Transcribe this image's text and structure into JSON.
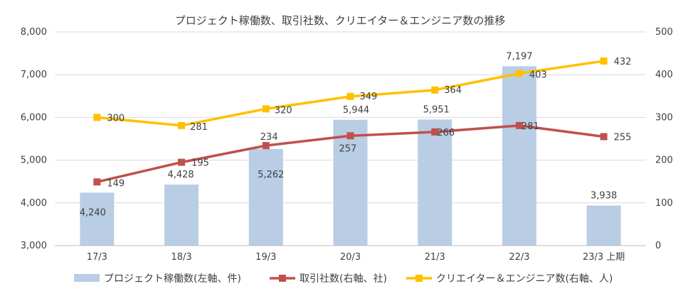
{
  "chart_data": {
    "type": "bar+line",
    "title": "プロジェクト稼働数、取引社数、クリエイター＆エンジニア数の推移",
    "categories": [
      "17/3",
      "18/3",
      "19/3",
      "20/3",
      "21/3",
      "22/3",
      "23/3 上期"
    ],
    "left_axis": {
      "min": 3000,
      "max": 8000,
      "step": 1000,
      "ticks": [
        "3,000",
        "4,000",
        "5,000",
        "6,000",
        "7,000",
        "8,000"
      ]
    },
    "right_axis": {
      "min": 0,
      "max": 500,
      "step": 100,
      "ticks": [
        "0",
        "100",
        "200",
        "300",
        "400",
        "500"
      ]
    },
    "grid": true,
    "legend_position": "bottom",
    "series": [
      {
        "name": "プロジェクト稼働数(左軸、件)",
        "type": "bar",
        "axis": "left",
        "color": "#b9cde5",
        "values": [
          4240,
          4428,
          5262,
          5944,
          5951,
          7197,
          3938
        ],
        "labels": [
          "4,240",
          "4,428",
          "5,262",
          "5,944",
          "5,951",
          "7,197",
          "3,938"
        ]
      },
      {
        "name": "取引社数(右軸、社)",
        "type": "line",
        "axis": "right",
        "color": "#c0504d",
        "marker": "square",
        "values": [
          149,
          195,
          234,
          257,
          266,
          281,
          255
        ],
        "labels": [
          "149",
          "195",
          "234",
          "257",
          "266",
          "281",
          "255"
        ]
      },
      {
        "name": "クリエイター＆エンジニア数(右軸、人)",
        "type": "line",
        "axis": "right",
        "color": "#ffc000",
        "marker": "square",
        "values": [
          300,
          281,
          320,
          349,
          364,
          403,
          432
        ],
        "labels": [
          "300",
          "281",
          "320",
          "349",
          "364",
          "403",
          "432"
        ]
      }
    ]
  }
}
